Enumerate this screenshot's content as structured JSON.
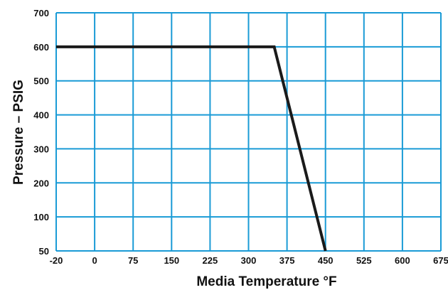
{
  "chart_data": {
    "type": "line",
    "title": "",
    "xlabel": "Media Temperature °F",
    "ylabel": "Pressure – PSIG",
    "x_tick_labels": [
      "-20",
      "0",
      "75",
      "150",
      "225",
      "300",
      "375",
      "450",
      "525",
      "600",
      "675"
    ],
    "y_tick_labels": [
      "50",
      "100",
      "200",
      "300",
      "400",
      "500",
      "600",
      "700"
    ],
    "grid": true,
    "legend": "none",
    "series": [
      {
        "points": [
          {
            "x": "-20",
            "y": 600
          },
          {
            "x": 350,
            "y": 600
          },
          {
            "x": 450,
            "y": 50
          }
        ]
      }
    ],
    "colors": {
      "grid": "#1a9bd6",
      "line": "#1a1a1a",
      "text": "#111111"
    }
  }
}
